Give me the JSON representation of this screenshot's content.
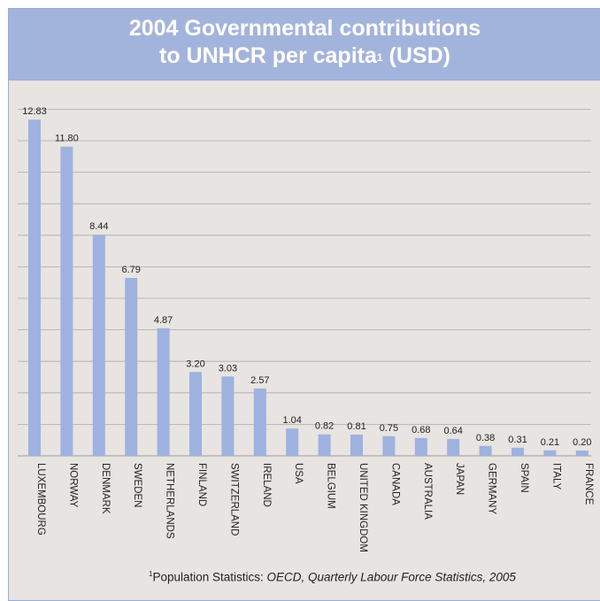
{
  "title": {
    "line1": "2004 Governmental contributions",
    "line2_main": "to UNHCR per capita",
    "line2_sup": "1",
    "line2_end": " (USD)"
  },
  "footnote": {
    "sup": "1",
    "prefix": "Population Statistics: ",
    "source": "OECD, Quarterly Labour Force Statistics, 2005"
  },
  "colors": {
    "bar": "#9eb2e0",
    "grid": "#aaaaaa",
    "title_bg": "#a3b4dc",
    "plot_bg": "#e8e4e1"
  },
  "chart_data": {
    "type": "bar",
    "title": "2004 Governmental contributions to UNHCR per capita (USD)",
    "xlabel": "",
    "ylabel": "",
    "ylim": [
      0,
      14
    ],
    "grid": true,
    "categories": [
      "LUXEMBOURG",
      "NORWAY",
      "DENMARK",
      "SWEDEN",
      "NETHERLANDS",
      "FINLAND",
      "SWITZERLAND",
      "IRELAND",
      "USA",
      "BELGIUM",
      "UNITED KINGDOM",
      "CANADA",
      "AUSTRALIA",
      "JAPAN",
      "GERMANY",
      "SPAIN",
      "ITALY",
      "FRANCE"
    ],
    "values": [
      12.83,
      11.8,
      8.44,
      6.79,
      4.87,
      3.2,
      3.03,
      2.57,
      1.04,
      0.82,
      0.81,
      0.75,
      0.68,
      0.64,
      0.38,
      0.31,
      0.21,
      0.2
    ],
    "value_labels": [
      "12.83",
      "11.80",
      "8.44",
      "6.79",
      "4.87",
      "3.20",
      "3.03",
      "2.57",
      "1.04",
      "0.82",
      "0.81",
      "0.75",
      "0.68",
      "0.64",
      "0.38",
      "0.31",
      "0.21",
      "0.20"
    ]
  }
}
